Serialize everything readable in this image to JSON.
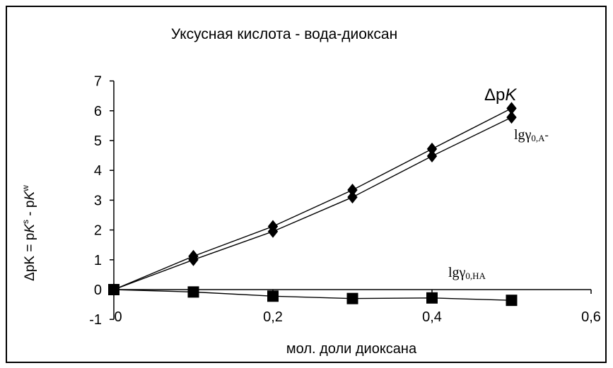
{
  "chart_data": {
    "type": "line",
    "title": "Уксусная кислота - вода-диоксан",
    "xlabel": "мол. доли  диоксана",
    "ylabel": "ΔpK = pK^s - pK^w",
    "ylabel_parts": {
      "delta": "Δ",
      "p1": "pK",
      "eq": " = p",
      "k1": "K",
      "sup1": "s",
      "dash": " - p",
      "k2": "K",
      "sup2": "w"
    },
    "xlim": [
      0,
      0.6
    ],
    "ylim": [
      -1,
      7
    ],
    "x_ticks": [
      "0",
      "0,2",
      "0,4",
      "0,6"
    ],
    "y_ticks": [
      "-1",
      "0",
      "1",
      "2",
      "3",
      "4",
      "5",
      "6",
      "7"
    ],
    "grid": false,
    "series": [
      {
        "name": "ΔpK",
        "label_parts": {
          "main": "Δp",
          "italic": "K"
        },
        "marker": "diamond",
        "x": [
          0,
          0.1,
          0.2,
          0.3,
          0.4,
          0.5
        ],
        "values": [
          0,
          1.12,
          2.12,
          3.34,
          4.72,
          6.08
        ]
      },
      {
        "name": "lgγ0,A-",
        "label_parts": {
          "lg": "lg",
          "gamma": "γ",
          "sub": "0,A",
          "sup": "-"
        },
        "marker": "diamond",
        "x": [
          0,
          0.1,
          0.2,
          0.3,
          0.4,
          0.5
        ],
        "values": [
          0,
          1.0,
          1.95,
          3.1,
          4.48,
          5.78
        ]
      },
      {
        "name": "lgγ0,HA",
        "label_parts": {
          "lg": "lg",
          "gamma": "γ",
          "sub": "0,HA"
        },
        "marker": "square",
        "x": [
          0,
          0.1,
          0.2,
          0.3,
          0.4,
          0.5
        ],
        "values": [
          0,
          -0.08,
          -0.22,
          -0.3,
          -0.28,
          -0.36
        ]
      }
    ]
  }
}
